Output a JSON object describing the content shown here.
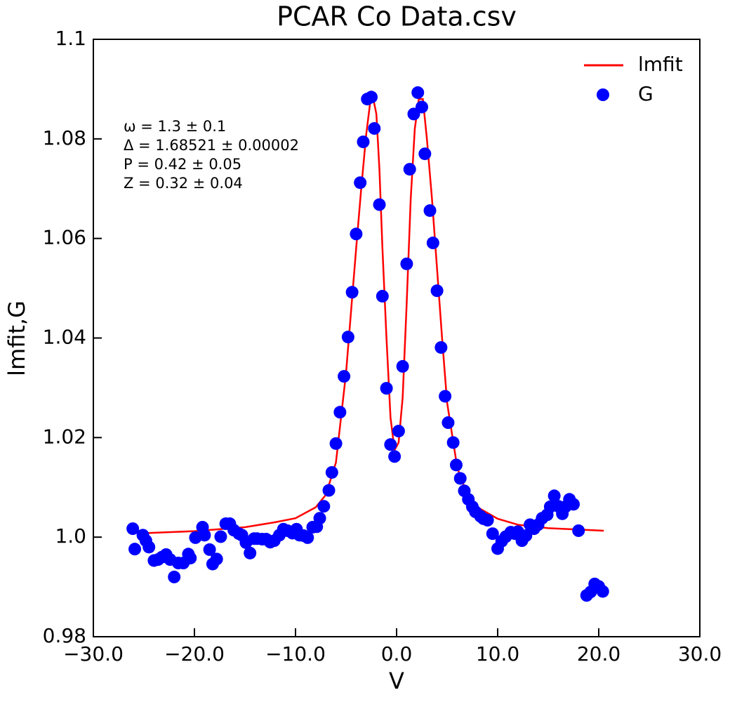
{
  "chart_data": {
    "type": "line",
    "title": "PCAR Co Data.csv",
    "x_label": "V",
    "y_label": "lmfit,G",
    "xlim": [
      -30,
      30
    ],
    "ylim": [
      0.98,
      1.1
    ],
    "xticks": [
      {
        "value": -30,
        "label": "−30.0"
      },
      {
        "value": -20,
        "label": "−20.0"
      },
      {
        "value": -10,
        "label": "−10.0"
      },
      {
        "value": 0,
        "label": "0.0"
      },
      {
        "value": 10,
        "label": "10.0"
      },
      {
        "value": 20,
        "label": "20.0"
      },
      {
        "value": 30,
        "label": "30.0"
      }
    ],
    "yticks": [
      0.98,
      {
        "value": 1.0,
        "label": "1.0"
      },
      1.02,
      1.04,
      1.06,
      1.08,
      1.1
    ],
    "legend": "upper right",
    "annotations": [
      "ω = 1.3 ± 0.1",
      "Δ = 1.68521 ± 0.00002",
      "P = 0.42 ± 0.05",
      "Z = 0.32 ± 0.04"
    ],
    "series": [
      {
        "name": "lmfit",
        "type": "line",
        "color": "#ff0000",
        "x": [
          -25,
          -20,
          -15,
          -12,
          -10,
          -8,
          -7,
          -6,
          -5,
          -4,
          -3.5,
          -3,
          -2.6,
          -2.3,
          -2.0,
          -1.7,
          -1.4,
          -1.0,
          -0.6,
          -0.2,
          0.2,
          0.6,
          1.0,
          1.4,
          1.8,
          2.2,
          2.6,
          3.0,
          3.5,
          4,
          4.5,
          5,
          6,
          7,
          8,
          10,
          12,
          15,
          20.5
        ],
        "values": [
          1.0008,
          1.0012,
          1.002,
          1.003,
          1.0038,
          1.006,
          1.0085,
          1.015,
          1.033,
          1.058,
          1.07,
          1.081,
          1.0875,
          1.088,
          1.085,
          1.074,
          1.058,
          1.04,
          1.024,
          1.0175,
          1.019,
          1.028,
          1.047,
          1.068,
          1.082,
          1.088,
          1.088,
          1.08,
          1.068,
          1.054,
          1.04,
          1.027,
          1.014,
          1.0085,
          1.006,
          1.0037,
          1.0025,
          1.0018,
          1.0013
        ]
      },
      {
        "name": "G",
        "type": "scatter",
        "color": "#0000ff",
        "x": [
          -26.1,
          -25.9,
          -25.1,
          -24.8,
          -24.5,
          -24.0,
          -23.6,
          -23.2,
          -22.8,
          -22.4,
          -22.0,
          -21.6,
          -21.1,
          -20.6,
          -20.4,
          -19.9,
          -19.2,
          -19.0,
          -18.5,
          -18.2,
          -17.8,
          -17.4,
          -16.9,
          -16.5,
          -16.1,
          -15.6,
          -15.3,
          -14.9,
          -14.5,
          -14.1,
          -13.8,
          -13.3,
          -12.9,
          -12.5,
          -12.1,
          -11.6,
          -11.2,
          -10.8,
          -10.3,
          -9.9,
          -9.6,
          -9.2,
          -8.8,
          -8.3,
          -7.9,
          -7.6,
          -7.2,
          -6.7,
          -6.4,
          -6.0,
          -5.6,
          -5.2,
          -4.8,
          -4.4,
          -4.0,
          -3.6,
          -3.3,
          -2.9,
          -2.5,
          -2.2,
          -1.7,
          -1.4,
          -1.0,
          -0.6,
          -0.2,
          0.2,
          0.6,
          1.0,
          1.3,
          1.7,
          2.1,
          2.5,
          2.8,
          3.3,
          3.6,
          4.0,
          4.4,
          4.8,
          5.1,
          5.6,
          5.9,
          6.3,
          6.7,
          7.1,
          7.5,
          7.8,
          8.3,
          8.6,
          9.0,
          9.5,
          10.0,
          10.4,
          10.8,
          11.3,
          11.7,
          12.0,
          12.4,
          12.8,
          13.2,
          13.6,
          14.0,
          14.4,
          14.9,
          15.2,
          15.6,
          16.0,
          16.4,
          16.7,
          17.1,
          17.5,
          18.0,
          18.8,
          19.2,
          19.6,
          20.0,
          20.4
        ],
        "values": [
          1.0017,
          0.9976,
          1.0004,
          0.9993,
          0.998,
          0.9953,
          0.9955,
          0.996,
          0.9965,
          0.9955,
          0.992,
          0.9948,
          0.9948,
          0.9966,
          0.9958,
          0.9999,
          1.002,
          1.0004,
          0.9975,
          0.9946,
          0.9956,
          1.0001,
          1.0027,
          1.0027,
          1.0014,
          1.0007,
          1.0004,
          0.9989,
          0.9968,
          0.9997,
          0.9997,
          0.9996,
          0.9996,
          0.999,
          0.9993,
          1.0004,
          1.0016,
          1.0013,
          1.0008,
          1.0016,
          1.0004,
          1.0003,
          0.9999,
          1.002,
          1.0021,
          1.0038,
          1.0062,
          1.0094,
          1.013,
          1.0188,
          1.0251,
          1.0323,
          1.0402,
          1.0492,
          1.0609,
          1.0712,
          1.0794,
          1.088,
          1.0884,
          1.0821,
          1.0668,
          1.0484,
          1.0299,
          1.0186,
          1.0162,
          1.0213,
          1.0343,
          1.0549,
          1.0739,
          1.085,
          1.0893,
          1.0864,
          1.077,
          1.0656,
          1.0591,
          1.0495,
          1.0381,
          1.0283,
          1.023,
          1.019,
          1.0145,
          1.0118,
          1.0093,
          1.0076,
          1.0061,
          1.0051,
          1.0042,
          1.0037,
          1.0034,
          1.0007,
          0.9977,
          0.9992,
          1.0001,
          1.001,
          1.0007,
          1.0011,
          0.9993,
          1.0003,
          1.0025,
          1.0017,
          1.0025,
          1.0038,
          1.0045,
          1.0061,
          1.0083,
          1.0062,
          1.0047,
          1.0061,
          1.0076,
          1.0066,
          1.0013,
          0.9883,
          0.989,
          0.9906,
          0.9901,
          0.9891
        ]
      }
    ]
  }
}
